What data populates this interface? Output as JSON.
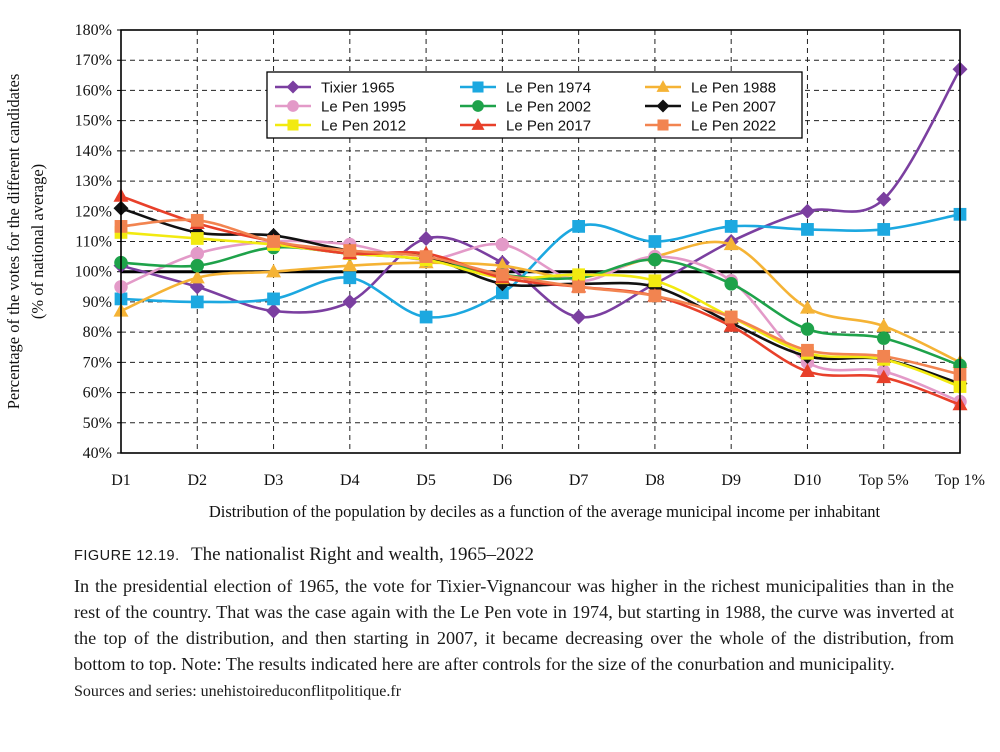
{
  "chart_data": {
    "type": "line",
    "title": "",
    "xlabel": "Distribution of the population by deciles as a function of the average municipal income per inhabitant",
    "ylabel_lines": [
      "Percentage of the votes for the different candidates",
      "(% of national average)"
    ],
    "categories": [
      "D1",
      "D2",
      "D3",
      "D4",
      "D5",
      "D6",
      "D7",
      "D8",
      "D9",
      "D10",
      "Top 5%",
      "Top 1%"
    ],
    "ylim": [
      40,
      180
    ],
    "yticks": [
      40,
      50,
      60,
      70,
      80,
      90,
      100,
      110,
      120,
      130,
      140,
      150,
      160,
      170,
      180
    ],
    "ytick_labels": [
      "40%",
      "50%",
      "60%",
      "70%",
      "80%",
      "90%",
      "100%",
      "110%",
      "120%",
      "130%",
      "140%",
      "150%",
      "160%",
      "170%",
      "180%"
    ],
    "reference_line": 100,
    "grid": true,
    "legend_position": "top-center",
    "series": [
      {
        "name": "Tixier 1965",
        "color": "#7b3fa0",
        "marker": "diamond",
        "values": [
          102,
          95,
          87,
          90,
          111,
          103,
          85,
          96,
          110,
          120,
          124,
          167
        ]
      },
      {
        "name": "Le Pen 1974",
        "color": "#1ca8e0",
        "marker": "square",
        "values": [
          91,
          90,
          91,
          98,
          85,
          93,
          115,
          110,
          115,
          114,
          114,
          119
        ]
      },
      {
        "name": "Le Pen 1988",
        "color": "#f5b335",
        "marker": "triangle",
        "values": [
          87,
          98,
          100,
          102,
          103,
          102,
          98,
          105,
          109,
          88,
          82,
          70
        ]
      },
      {
        "name": "Le Pen 1995",
        "color": "#e39ac8",
        "marker": "circle",
        "values": [
          95,
          106,
          110,
          109,
          104,
          109,
          97,
          105,
          97,
          70,
          67,
          57
        ]
      },
      {
        "name": "Le Pen 2002",
        "color": "#1ea24a",
        "marker": "circle",
        "values": [
          103,
          102,
          108,
          106,
          104,
          99,
          98,
          104,
          96,
          81,
          78,
          69
        ]
      },
      {
        "name": "Le Pen 2007",
        "color": "#111111",
        "marker": "diamond",
        "values": [
          121,
          113,
          112,
          107,
          105,
          96,
          96,
          95,
          83,
          72,
          71,
          63
        ]
      },
      {
        "name": "Le Pen 2012",
        "color": "#f2ea10",
        "marker": "square",
        "values": [
          113,
          111,
          109,
          106,
          104,
          98,
          99,
          97,
          85,
          73,
          71,
          62
        ]
      },
      {
        "name": "Le Pen 2017",
        "color": "#e8402a",
        "marker": "triangle",
        "values": [
          125,
          116,
          110,
          106,
          106,
          98,
          95,
          92,
          82,
          67,
          65,
          56
        ]
      },
      {
        "name": "Le Pen 2022",
        "color": "#f28450",
        "marker": "square",
        "values": [
          115,
          117,
          110,
          107,
          105,
          99,
          95,
          92,
          85,
          74,
          72,
          66
        ]
      }
    ]
  },
  "caption": {
    "figure_number": "FIGURE 12.19.",
    "heading": "The nationalist Right and wealth, 1965–2022",
    "body": "In the presidential election of 1965, the vote for Tixier-Vignancour was higher in the richest municipalities than in the rest of the country. That was the case again with the Le Pen vote in 1974, but starting in 1988, the curve was inverted at the top of the distribution, and then starting in 2007, it became decreasing over the whole of the distribution, from bottom to top. Note: The results indicated here are after controls for the size of the conurbation and municipality.",
    "sources": "Sources and series: unehistoireduconflitpolitique.fr"
  }
}
